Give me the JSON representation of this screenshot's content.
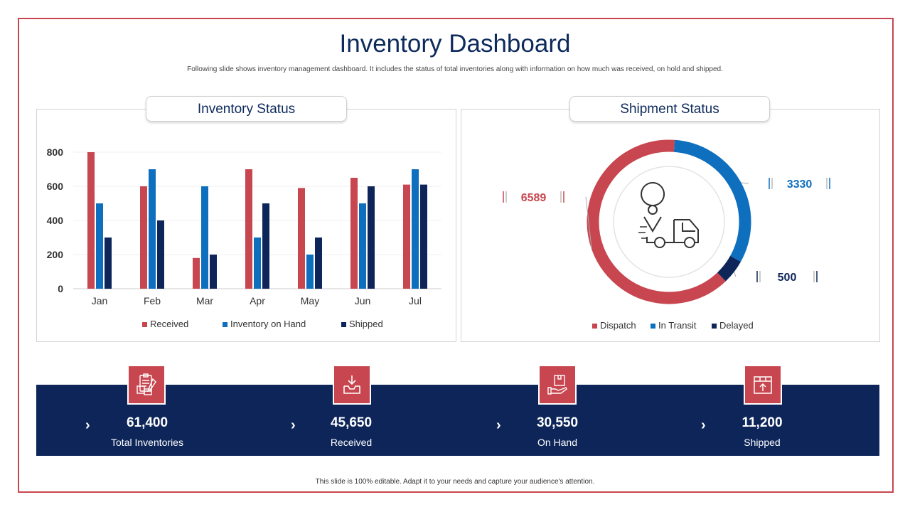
{
  "header": {
    "title": "Inventory Dashboard",
    "subtitle": "Following slide shows inventory management dashboard. It includes the status of total inventories along with information on how much was received, on hold and shipped."
  },
  "inventory_panel": {
    "title": "Inventory Status"
  },
  "shipment_panel": {
    "title": "Shipment Status"
  },
  "colors": {
    "received": "#c8464f",
    "on_hand": "#0e6fbf",
    "shipped": "#0d2559"
  },
  "chart_data": [
    {
      "type": "bar",
      "title": "Inventory Status",
      "categories": [
        "Jan",
        "Feb",
        "Mar",
        "Apr",
        "May",
        "Jun",
        "Jul"
      ],
      "series": [
        {
          "name": "Received",
          "color": "#c8464f",
          "values": [
            800,
            600,
            180,
            700,
            590,
            650,
            610
          ]
        },
        {
          "name": "Inventory on Hand",
          "color": "#0e6fbf",
          "values": [
            500,
            700,
            600,
            300,
            200,
            500,
            700
          ]
        },
        {
          "name": "Shipped",
          "color": "#0d2559",
          "values": [
            300,
            400,
            200,
            500,
            300,
            600,
            610
          ]
        }
      ],
      "ylim": [
        0,
        800
      ],
      "yticks": [
        0,
        200,
        400,
        600,
        800
      ],
      "ytick_labels": [
        "0",
        "200",
        "400",
        "600",
        "800"
      ],
      "legend": "bottom"
    },
    {
      "type": "pie",
      "title": "Shipment Status",
      "labels": [
        "Dispatch",
        "In Transit",
        "Delayed"
      ],
      "values": [
        6589,
        3330,
        500
      ],
      "value_labels": [
        "6589",
        "3330",
        "500"
      ],
      "colors": [
        "#c8464f",
        "#0e6fbf",
        "#0d2559"
      ],
      "legend": "bottom"
    }
  ],
  "stats": [
    {
      "value": "61,400",
      "label": "Total Inventories",
      "icon": "clipboard-icon"
    },
    {
      "value": "45,650",
      "label": "Received",
      "icon": "inbox-download-icon"
    },
    {
      "value": "30,550",
      "label": "On Hand",
      "icon": "hand-box-icon"
    },
    {
      "value": "11,200",
      "label": "Shipped",
      "icon": "box-upload-icon"
    }
  ],
  "footer": {
    "text": "This slide is 100% editable.  Adapt it to your needs and capture your audience's attention."
  }
}
